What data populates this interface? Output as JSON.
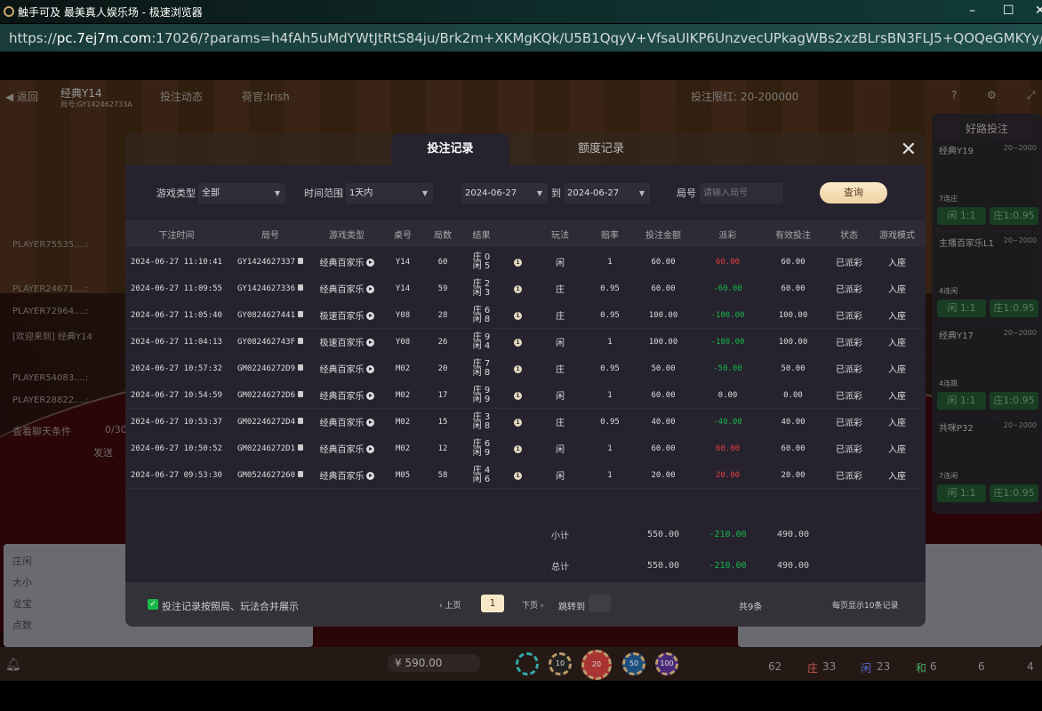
{
  "browser": {
    "title": "触手可及 最美真人娱乐场 - 极速浏览器",
    "url_scheme": "https://",
    "url_host": "pc.7ej7m.com",
    "url_rest": ":17026/?params=h4fAh5uMdYWtJtRtS84ju/Brk2m+XKMgKQk/U5B1QqyV+VfsaUIKP6UnzvecUPkagWBs2xzBLrsBN3FLJ5+QOQeGMKYy/OsuLzTI7O..."
  },
  "game": {
    "back": "返回",
    "table_name": "经典Y14",
    "round_id": "局号:GY142462733A",
    "bet_dynamics": "投注动态",
    "dealer": "荷官:Irish",
    "limit": "投注限红: 20-200000",
    "chat": [
      "PLAYER75535....:",
      "PLAYER24671....:",
      "PLAYER72964....:",
      "[欢迎来到] 经典Y14",
      "PLAYER54083....:",
      "PLAYER28822....:"
    ],
    "chat_condition": "查看聊天条件",
    "chat_count": "0/30",
    "send": "发送",
    "road_labels": [
      "庄闲",
      "大小",
      "龙宝",
      "点数"
    ],
    "balance": "¥ 590.00",
    "chips": [
      "",
      "10",
      "20",
      "50",
      "100"
    ],
    "stats": {
      "total": "62",
      "banker": "33",
      "player": "23",
      "tie": "6",
      "banker_pair": "6",
      "player_pair": "4"
    },
    "stat_labels": {
      "banker": "庄",
      "player": "闲",
      "tie": "和"
    },
    "side_panel": {
      "title": "好路投注",
      "tables": [
        {
          "name": "经典Y19",
          "limit": "20~2000",
          "streak": "7连庄"
        },
        {
          "name": "主播百家乐L1",
          "limit": "20~2000",
          "streak": "4连闲"
        },
        {
          "name": "经典Y17",
          "limit": "20~2000",
          "streak": "4连跳"
        },
        {
          "name": "共咪P32",
          "limit": "20~2000",
          "streak": "7连闲"
        }
      ],
      "player_btn": "闲 1:1",
      "banker_btn": "庄1:0.95"
    }
  },
  "modal": {
    "tabs": [
      "投注记录",
      "额度记录"
    ],
    "filters": {
      "game_type_label": "游戏类型",
      "game_type": "全部",
      "time_range_label": "时间范围",
      "time_range": "1天内",
      "date_from": "2024-06-27",
      "to": "到",
      "date_to": "2024-06-27",
      "round_label": "局号",
      "round_placeholder": "请输入局号",
      "query": "查询"
    },
    "columns": [
      "下注时间",
      "局号",
      "游戏类型",
      "桌号",
      "局数",
      "结果",
      "",
      "玩法",
      "赔率",
      "投注金额",
      "派彩",
      "有效投注",
      "状态",
      "游戏模式"
    ],
    "rows": [
      {
        "time": "2024-06-27 11:10:41",
        "round": "GY1424627337",
        "game": "经典百家乐",
        "table": "Y14",
        "no": "60",
        "b": "庄 0",
        "p": "闲 5",
        "bet": "闲",
        "odds": "1",
        "amount": "60.00",
        "payout": "60.00",
        "pc": "red",
        "valid": "60.00",
        "status": "已派彩",
        "mode": "入座"
      },
      {
        "time": "2024-06-27 11:09:55",
        "round": "GY1424627336",
        "game": "经典百家乐",
        "table": "Y14",
        "no": "59",
        "b": "庄 2",
        "p": "闲 3",
        "bet": "庄",
        "odds": "0.95",
        "amount": "60.00",
        "payout": "-60.00",
        "pc": "green",
        "valid": "60.00",
        "status": "已派彩",
        "mode": "入座"
      },
      {
        "time": "2024-06-27 11:05:40",
        "round": "GY0824627441",
        "game": "极速百家乐",
        "table": "Y08",
        "no": "28",
        "b": "庄 6",
        "p": "闲 8",
        "bet": "庄",
        "odds": "0.95",
        "amount": "100.00",
        "payout": "-100.00",
        "pc": "green",
        "valid": "100.00",
        "status": "已派彩",
        "mode": "入座"
      },
      {
        "time": "2024-06-27 11:04:13",
        "round": "GY082462743F",
        "game": "极速百家乐",
        "table": "Y08",
        "no": "26",
        "b": "庄 9",
        "p": "闲 4",
        "bet": "闲",
        "odds": "1",
        "amount": "100.00",
        "payout": "-100.00",
        "pc": "green",
        "valid": "100.00",
        "status": "已派彩",
        "mode": "入座"
      },
      {
        "time": "2024-06-27 10:57:32",
        "round": "GM02246272D9",
        "game": "经典百家乐",
        "table": "M02",
        "no": "20",
        "b": "庄 7",
        "p": "闲 8",
        "bet": "庄",
        "odds": "0.95",
        "amount": "50.00",
        "payout": "-50.00",
        "pc": "green",
        "valid": "50.00",
        "status": "已派彩",
        "mode": "入座"
      },
      {
        "time": "2024-06-27 10:54:59",
        "round": "GM02246272D6",
        "game": "经典百家乐",
        "table": "M02",
        "no": "17",
        "b": "庄 9",
        "p": "闲 9",
        "bet": "闲",
        "odds": "1",
        "amount": "60.00",
        "payout": "0.00",
        "pc": "",
        "valid": "0.00",
        "status": "已派彩",
        "mode": "入座"
      },
      {
        "time": "2024-06-27 10:53:37",
        "round": "GM02246272D4",
        "game": "经典百家乐",
        "table": "M02",
        "no": "15",
        "b": "庄 3",
        "p": "闲 8",
        "bet": "庄",
        "odds": "0.95",
        "amount": "40.00",
        "payout": "-40.00",
        "pc": "green",
        "valid": "40.00",
        "status": "已派彩",
        "mode": "入座"
      },
      {
        "time": "2024-06-27 10:50:52",
        "round": "GM02246272D1",
        "game": "经典百家乐",
        "table": "M02",
        "no": "12",
        "b": "庄 6",
        "p": "闲 9",
        "bet": "闲",
        "odds": "1",
        "amount": "60.00",
        "payout": "60.00",
        "pc": "red",
        "valid": "60.00",
        "status": "已派彩",
        "mode": "入座"
      },
      {
        "time": "2024-06-27 09:53:30",
        "round": "GM0524627260",
        "game": "经典百家乐",
        "table": "M05",
        "no": "58",
        "b": "庄 4",
        "p": "闲 6",
        "bet": "闲",
        "odds": "1",
        "amount": "20.00",
        "payout": "20.00",
        "pc": "red",
        "valid": "20.00",
        "status": "已派彩",
        "mode": "入座"
      }
    ],
    "subtotal": {
      "label": "小计",
      "amount": "550.00",
      "payout": "-210.00",
      "valid": "490.00"
    },
    "total": {
      "label": "总计",
      "amount": "550.00",
      "payout": "-210.00",
      "valid": "490.00"
    },
    "footer": {
      "merge_label": "投注记录按照局、玩法合并展示",
      "merge_checked": true,
      "prev": "‹ 上页",
      "page": "1",
      "next": "下页 ›",
      "jump": "跳转到",
      "count": "共9条",
      "per_page": "每页显示10条记录"
    }
  },
  "colors": {
    "positive": "#e04040",
    "negative": "#16b84a",
    "accent": "#f0d3a4"
  }
}
